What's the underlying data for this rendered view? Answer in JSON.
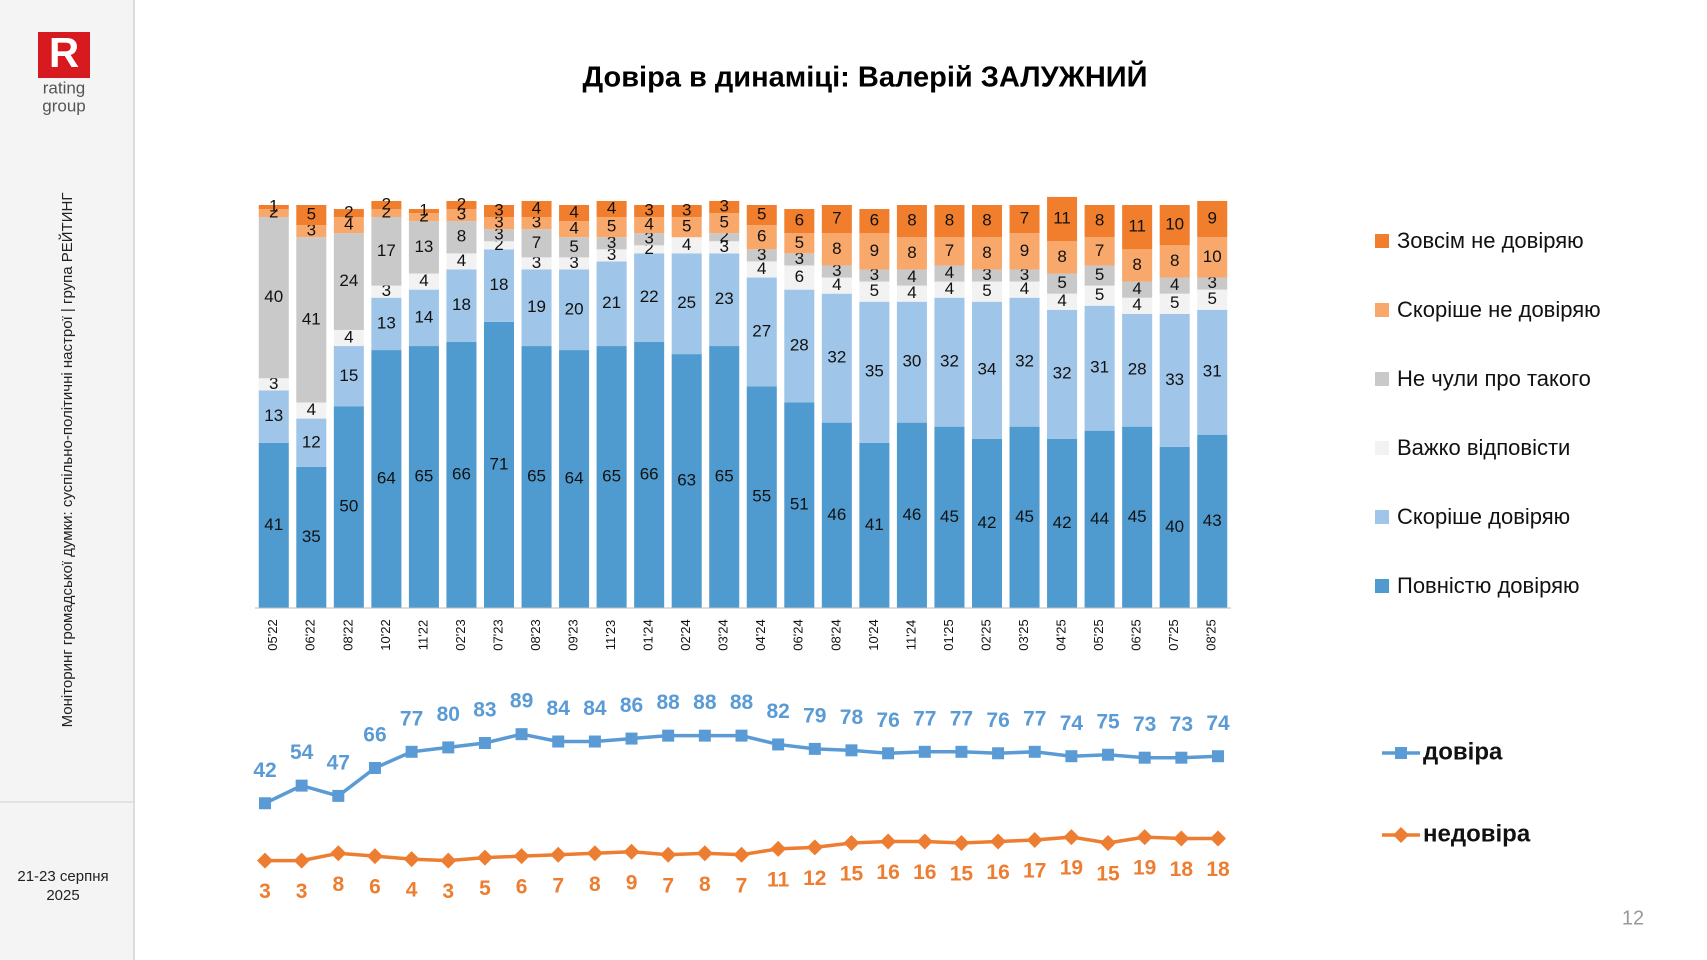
{
  "logo": {
    "line1": "rating",
    "line2": "group"
  },
  "sidebar": {
    "caption": "Моніторинг громадської думки: суспільно-політичні настрої | група РЕЙТИНГ",
    "date_line1": "21-23 серпня",
    "date_line2": "2025"
  },
  "page_number": "12",
  "chart_data": [
    {
      "type": "stacked_bar",
      "title": "Довіра в динаміці: Валерій ЗАЛУЖНИЙ",
      "categories": [
        "05'22",
        "06'22",
        "08'22",
        "10'22",
        "11'22",
        "02'23",
        "07'23",
        "08'23",
        "09'23",
        "11'23",
        "01'24",
        "02'24",
        "03'24",
        "04'24",
        "06'24",
        "08'24",
        "10'24",
        "11'24",
        "01'25",
        "02'25",
        "03'25",
        "04'25",
        "05'25",
        "06'25",
        "07'25",
        "08'25"
      ],
      "ylim": [
        0,
        100
      ],
      "series": [
        {
          "name": "Повністю довіряю",
          "color": "#4f9bcf",
          "values": [
            41,
            35,
            50,
            64,
            65,
            66,
            71,
            65,
            64,
            65,
            66,
            63,
            65,
            55,
            51,
            46,
            41,
            46,
            45,
            42,
            45,
            42,
            44,
            45,
            40,
            43
          ]
        },
        {
          "name": "Скоріше довіряю",
          "color": "#9fc5e8",
          "values": [
            13,
            12,
            15,
            13,
            14,
            18,
            18,
            19,
            20,
            21,
            22,
            25,
            23,
            27,
            28,
            32,
            35,
            30,
            32,
            34,
            32,
            32,
            31,
            28,
            33,
            31
          ]
        },
        {
          "name": "Важко відповісти",
          "color": "#f2f2f2",
          "values": [
            3,
            4,
            4,
            3,
            4,
            4,
            2,
            3,
            3,
            3,
            2,
            4,
            3,
            4,
            6,
            4,
            5,
            4,
            4,
            5,
            4,
            4,
            5,
            4,
            5,
            5
          ]
        },
        {
          "name": "Не чули про такого",
          "color": "#c9c9c9",
          "values": [
            40,
            41,
            24,
            17,
            13,
            8,
            3,
            7,
            5,
            3,
            3,
            null,
            2,
            3,
            3,
            3,
            3,
            4,
            4,
            3,
            3,
            5,
            5,
            4,
            4,
            3
          ]
        },
        {
          "name": "Скоріше не довіряю",
          "color": "#f9a86c",
          "values": [
            2,
            3,
            4,
            2,
            2,
            3,
            3,
            3,
            4,
            5,
            4,
            5,
            5,
            6,
            5,
            8,
            9,
            8,
            7,
            8,
            9,
            8,
            7,
            8,
            8,
            10
          ]
        },
        {
          "name": "Зовсім не довіряю",
          "color": "#f07e2c",
          "values": [
            1,
            5,
            2,
            2,
            1,
            2,
            3,
            4,
            4,
            4,
            3,
            3,
            3,
            5,
            6,
            7,
            6,
            8,
            8,
            8,
            7,
            11,
            8,
            11,
            10,
            9
          ]
        }
      ]
    },
    {
      "type": "line",
      "categories": [
        null,
        null,
        null,
        null,
        null,
        null,
        null,
        null,
        null,
        null,
        null,
        null,
        null,
        null,
        null,
        null,
        null,
        null,
        null,
        null,
        null,
        null,
        null,
        null,
        null,
        null,
        null
      ],
      "ylim": [
        0,
        100
      ],
      "series": [
        {
          "name": "довіра",
          "color": "#5b9bd5",
          "marker": "square",
          "values": [
            42,
            54,
            47,
            66,
            77,
            80,
            83,
            89,
            84,
            84,
            86,
            88,
            88,
            88,
            82,
            79,
            78,
            76,
            77,
            77,
            76,
            77,
            74,
            75,
            73,
            73,
            74
          ]
        },
        {
          "name": "недовіра",
          "color": "#ed7d31",
          "marker": "diamond",
          "values": [
            3,
            3,
            8,
            6,
            4,
            3,
            5,
            6,
            7,
            8,
            9,
            7,
            8,
            7,
            11,
            12,
            15,
            16,
            16,
            15,
            16,
            17,
            19,
            15,
            19,
            18,
            18
          ]
        }
      ]
    }
  ]
}
